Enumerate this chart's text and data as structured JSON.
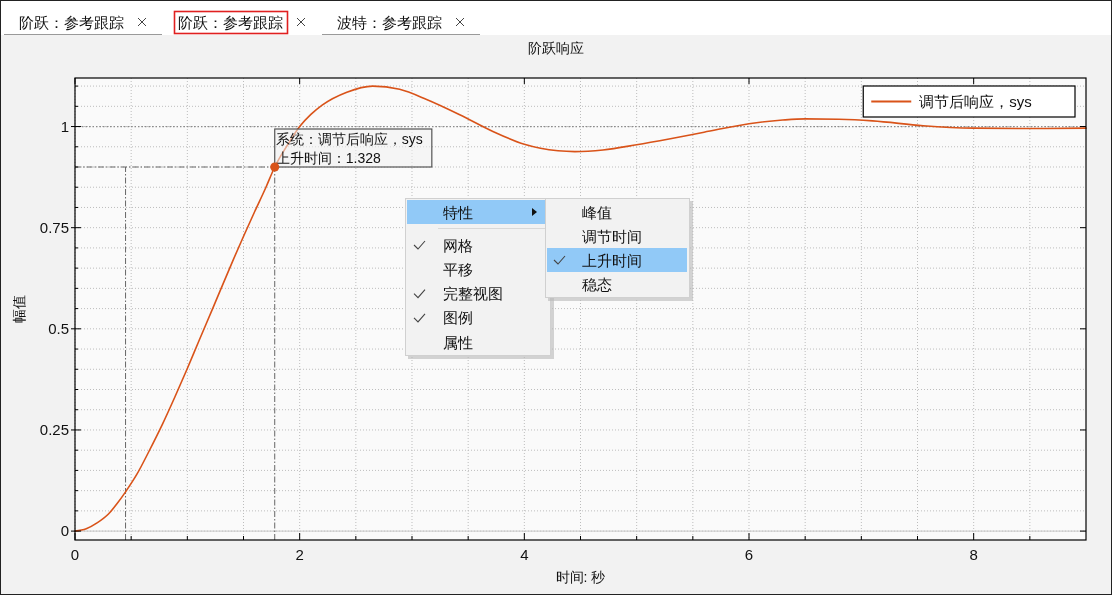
{
  "chart_data": {
    "type": "line",
    "title": "阶跃响应",
    "xlabel": "时间: 秒",
    "ylabel": "幅值",
    "x": [
      0,
      0.1,
      0.2,
      0.3,
      0.375,
      0.45,
      0.55,
      0.66,
      0.78,
      0.89,
      1.0,
      1.1,
      1.23,
      1.4,
      1.6,
      1.7,
      1.778,
      1.9,
      2.0,
      2.1,
      2.2,
      2.42,
      2.65,
      2.89,
      3.13,
      3.42,
      3.72,
      4.0,
      4.3,
      4.45,
      4.7,
      5.0,
      5.3,
      5.6,
      6.0,
      6.3,
      6.5,
      6.8,
      7.1,
      7.55,
      8.0,
      8.5,
      9.0
    ],
    "series": [
      {
        "name": "调节后响应，sys",
        "color": "#d95319",
        "values": [
          0,
          0.006,
          0.021,
          0.043,
          0.068,
          0.097,
          0.14,
          0.198,
          0.265,
          0.332,
          0.402,
          0.468,
          0.553,
          0.665,
          0.79,
          0.85,
          0.9,
          0.958,
          1.0,
          1.03,
          1.053,
          1.085,
          1.1,
          1.092,
          1.067,
          1.03,
          0.988,
          0.956,
          0.94,
          0.938,
          0.942,
          0.955,
          0.97,
          0.986,
          1.007,
          1.016,
          1.019,
          1.018,
          1.014,
          1.002,
          0.996,
          0.995,
          0.996
        ]
      }
    ],
    "xlim": [
      0,
      9
    ],
    "ylim": [
      -0.022,
      1.12
    ],
    "xticks": [
      0,
      {
        "value": 0.5,
        "label": null
      },
      {
        "value": 1,
        "label": null
      },
      {
        "value": 1.5,
        "label": null
      },
      2,
      {
        "value": 2.5,
        "label": null
      },
      {
        "value": 3,
        "label": null
      },
      {
        "value": 3.5,
        "label": null
      },
      4,
      {
        "value": 4.5,
        "label": null
      },
      {
        "value": 5,
        "label": null
      },
      {
        "value": 5.5,
        "label": null
      },
      6,
      {
        "value": 6.5,
        "label": null
      },
      {
        "value": 7,
        "label": null
      },
      {
        "value": 7.5,
        "label": null
      },
      8,
      {
        "value": 8.5,
        "label": null
      }
    ],
    "yticks": [
      0,
      {
        "value": 0.05,
        "label": null
      },
      {
        "value": 0.1,
        "label": null
      },
      {
        "value": 0.15,
        "label": null
      },
      {
        "value": 0.2,
        "label": null
      },
      0.25,
      {
        "value": 0.3,
        "label": null
      },
      {
        "value": 0.35,
        "label": null
      },
      {
        "value": 0.4,
        "label": null
      },
      {
        "value": 0.45,
        "label": null
      },
      0.5,
      {
        "value": 0.55,
        "label": null
      },
      {
        "value": 0.6,
        "label": null
      },
      {
        "value": 0.65,
        "label": null
      },
      {
        "value": 0.7,
        "label": null
      },
      0.75,
      {
        "value": 0.8,
        "label": null
      },
      {
        "value": 0.85,
        "label": null
      },
      {
        "value": 0.9,
        "label": null
      },
      {
        "value": 0.95,
        "label": null
      },
      1,
      {
        "value": 1.05,
        "label": null
      },
      {
        "value": 1.1,
        "label": null
      }
    ],
    "grid": true,
    "legend": "top right",
    "ref_lines": [
      {
        "axis": "y",
        "value": 0,
        "color": "#c8c8c8",
        "line_style": "solid"
      },
      {
        "axis": "y",
        "value": 1,
        "color": "#8c8c8c",
        "line_style": "dotted"
      },
      {
        "axis": "x",
        "value": 0.45,
        "color": "#666666",
        "line_style": "dashed"
      },
      {
        "axis": "x",
        "value": 1.778,
        "color": "#666666",
        "line_style": "dashed"
      },
      {
        "axis": "y",
        "value": 0.9,
        "color": "#666666",
        "line_style": "dashed"
      }
    ],
    "annotations": [
      "阶跃：参考跟踪",
      "阶跃：参考跟踪",
      "波特：参考跟踪",
      {
        "text": "系统：调节后响应，sys\n上升时间：1.328",
        "x": 1.778,
        "y": 0.9
      },
      "特性",
      "网格",
      "平移",
      "完整视图",
      "图例",
      "属性",
      "峰值",
      "调节时间",
      "上升时间",
      "稳态"
    ]
  }
}
